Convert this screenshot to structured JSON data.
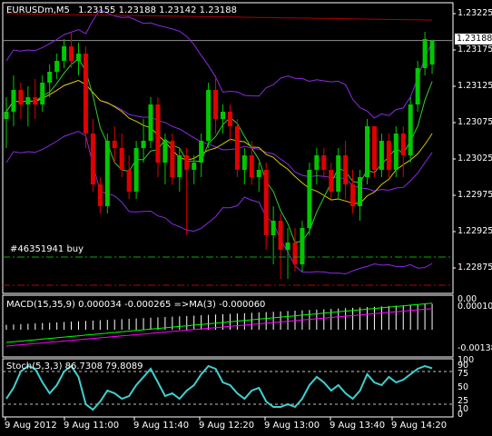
{
  "symbol_header": {
    "symbol": "EURUSDm,M5",
    "ohlc": "1.23155 1.23188 1.23142 1.23188"
  },
  "order_label": "#46351941 buy",
  "current_price": "1.23188",
  "price_scale": [
    "1.23225",
    "1.23175",
    "1.23125",
    "1.23075",
    "1.23025",
    "1.22975",
    "1.22925",
    "1.22875"
  ],
  "macd": {
    "label": "MACD(15,35,9) 0.000034 -0.000265 =>MA(3) -0.000060",
    "scale_top": "0.00",
    "scale_mid": "0.000102",
    "scale_bottom": "-0.00138"
  },
  "stoch": {
    "label": "Stoch(5,3,3) 86.7308 79.8089",
    "levels": [
      "100",
      "90",
      "75",
      "50",
      "25",
      "10",
      "0"
    ]
  },
  "time_axis": [
    "9 Aug 2012",
    "9 Aug 11:00",
    "9 Aug 11:40",
    "9 Aug 12:20",
    "9 Aug 13:00",
    "9 Aug 13:40",
    "9 Aug 14:20"
  ],
  "colors": {
    "bull": "#00c800",
    "bear": "#e00000",
    "bollinger": "#8a2be2",
    "ma_yellow": "#d4c800",
    "ma_green": "#32cd32",
    "ma_red": "#b00000",
    "order_line": "#00b000",
    "stop_line": "#c00000",
    "stoch_main": "#40d0d0",
    "macd_hist": "#ffffff",
    "macd_signal": "#ff00ff",
    "macd_line": "#00ff00"
  },
  "chart_data": {
    "type": "candlestick",
    "candles": [
      [
        1.2308,
        1.2311,
        1.2304,
        1.2309
      ],
      [
        1.2309,
        1.2314,
        1.2307,
        1.2312
      ],
      [
        1.2312,
        1.2313,
        1.2308,
        1.231
      ],
      [
        1.231,
        1.23125,
        1.2307,
        1.2311
      ],
      [
        1.2311,
        1.23135,
        1.2308,
        1.231
      ],
      [
        1.231,
        1.2314,
        1.2309,
        1.2313
      ],
      [
        1.2313,
        1.23155,
        1.2311,
        1.23145
      ],
      [
        1.23145,
        1.2317,
        1.23135,
        1.2316
      ],
      [
        1.2316,
        1.2319,
        1.2315,
        1.2318
      ],
      [
        1.2318,
        1.232,
        1.2315,
        1.2316
      ],
      [
        1.2316,
        1.23185,
        1.2314,
        1.2317
      ],
      [
        1.2317,
        1.2318,
        1.2304,
        1.2306
      ],
      [
        1.2306,
        1.2308,
        1.2298,
        1.2299
      ],
      [
        1.2299,
        1.23,
        1.2295,
        1.2296
      ],
      [
        1.2296,
        1.2306,
        1.2295,
        1.2305
      ],
      [
        1.2305,
        1.2307,
        1.2302,
        1.2304
      ],
      [
        1.2304,
        1.2306,
        1.23,
        1.2301
      ],
      [
        1.2301,
        1.2303,
        1.2297,
        1.2298
      ],
      [
        1.2298,
        1.2305,
        1.2297,
        1.2304
      ],
      [
        1.2304,
        1.2308,
        1.2302,
        1.2305
      ],
      [
        1.2305,
        1.2311,
        1.2304,
        1.231
      ],
      [
        1.231,
        1.2311,
        1.23,
        1.2302
      ],
      [
        1.2302,
        1.2306,
        1.2299,
        1.2305
      ],
      [
        1.2305,
        1.2306,
        1.2299,
        1.23
      ],
      [
        1.23,
        1.2304,
        1.2298,
        1.2303
      ],
      [
        1.2303,
        1.2304,
        1.2292,
        1.2301
      ],
      [
        1.2301,
        1.2303,
        1.2299,
        1.2302
      ],
      [
        1.2302,
        1.2306,
        1.23,
        1.2305
      ],
      [
        1.2305,
        1.2313,
        1.2304,
        1.2312
      ],
      [
        1.2312,
        1.2314,
        1.2306,
        1.2308
      ],
      [
        1.2308,
        1.231,
        1.2306,
        1.2309
      ],
      [
        1.2309,
        1.231,
        1.2305,
        1.2307
      ],
      [
        1.2307,
        1.2308,
        1.23,
        1.2301
      ],
      [
        1.2301,
        1.2304,
        1.2299,
        1.2303
      ],
      [
        1.2303,
        1.2305,
        1.2299,
        1.23
      ],
      [
        1.23,
        1.2302,
        1.2298,
        1.2301
      ],
      [
        1.2301,
        1.2302,
        1.229,
        1.2292
      ],
      [
        1.2292,
        1.2296,
        1.2288,
        1.2294
      ],
      [
        1.2294,
        1.2295,
        1.2286,
        1.229
      ],
      [
        1.229,
        1.2293,
        1.2286,
        1.2291
      ],
      [
        1.2291,
        1.2293,
        1.2287,
        1.2288
      ],
      [
        1.2288,
        1.2294,
        1.2287,
        1.2293
      ],
      [
        1.2293,
        1.2302,
        1.2292,
        1.2301
      ],
      [
        1.2301,
        1.2304,
        1.2299,
        1.2303
      ],
      [
        1.2303,
        1.2304,
        1.23,
        1.2301
      ],
      [
        1.2301,
        1.2302,
        1.2297,
        1.2298
      ],
      [
        1.2298,
        1.2304,
        1.2297,
        1.2303
      ],
      [
        1.2303,
        1.2305,
        1.2297,
        1.2299
      ],
      [
        1.2299,
        1.2301,
        1.2295,
        1.2296
      ],
      [
        1.2296,
        1.2301,
        1.2294,
        1.23
      ],
      [
        1.23,
        1.2308,
        1.2299,
        1.2307
      ],
      [
        1.2307,
        1.2307,
        1.23,
        1.2301
      ],
      [
        1.2301,
        1.2306,
        1.23,
        1.2305
      ],
      [
        1.2305,
        1.2306,
        1.23,
        1.2301
      ],
      [
        1.2301,
        1.2307,
        1.23,
        1.2306
      ],
      [
        1.2306,
        1.2307,
        1.23,
        1.2303
      ],
      [
        1.2303,
        1.2311,
        1.2302,
        1.231
      ],
      [
        1.231,
        1.2316,
        1.2309,
        1.2315
      ],
      [
        1.2315,
        1.232,
        1.2314,
        1.2319
      ],
      [
        1.23155,
        1.23188,
        1.23142,
        1.23188
      ]
    ],
    "ylim": [
      1.2284,
      1.2324
    ]
  }
}
